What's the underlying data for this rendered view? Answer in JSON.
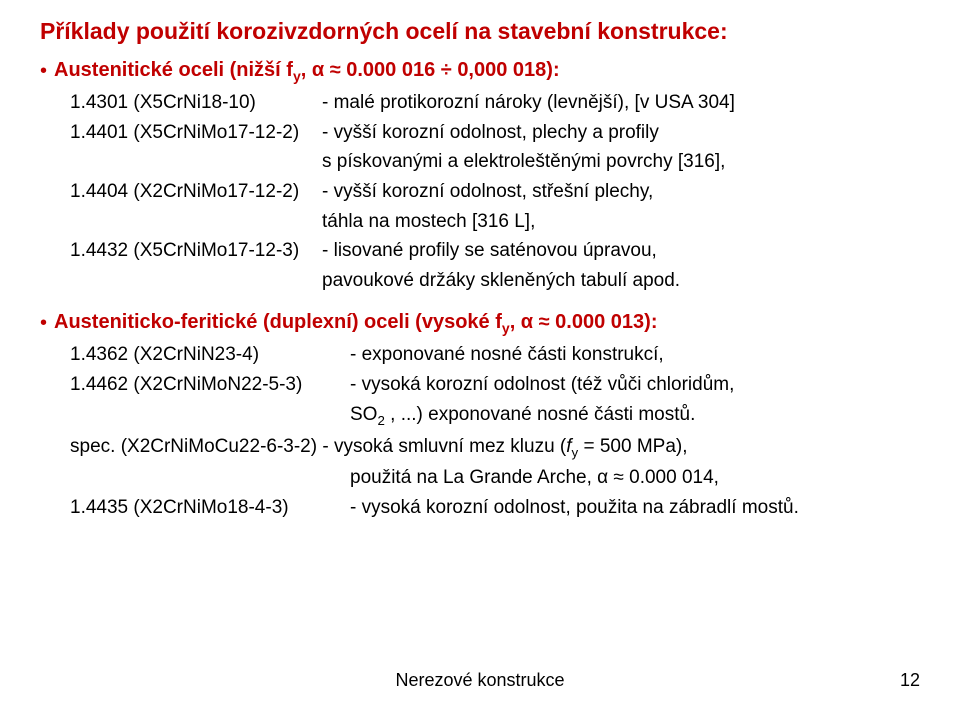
{
  "title": "Příklady použití korozivzdorných ocelí na stavební konstrukce:",
  "section1": {
    "head_pre": "Austenitické oceli",
    "head_post": " (nižší f",
    "head_sub": "y",
    "head_tail": ", α ≈ 0.000 016 ÷ 0,000 018):",
    "items": [
      {
        "code": "1.4301 (X5CrNi18-10)",
        "desc": "- malé protikorozní nároky (levnější),   [v USA 304]"
      },
      {
        "code": "1.4401 (X5CrNiMo17-12-2)",
        "desc": "- vyšší korozní odolnost, plechy a profily",
        "cont": "  s pískovanými a elektroleštěnými povrchy [316],"
      },
      {
        "code": "1.4404 (X2CrNiMo17-12-2)",
        "desc": "- vyšší korozní odolnost, střešní plechy,",
        "cont": "  táhla na mostech [316 L],"
      },
      {
        "code": "1.4432 (X5CrNiMo17-12-3)",
        "desc": "- lisované profily se saténovou úpravou,",
        "cont": "  pavoukové držáky skleněných tabulí apod."
      }
    ]
  },
  "section2": {
    "head_pre": "Austeniticko-feritické (duplexní) oceli",
    "head_post": " (vysoké f",
    "head_sub": "y",
    "head_tail": ", α ≈ 0.000 013):",
    "items": [
      {
        "code": "1.4362 (X2CrNiN23-4)",
        "desc": "- exponované nosné části konstrukcí,"
      },
      {
        "code": "1.4462 (X2CrNiMoN22-5-3)",
        "desc": "- vysoká korozní odolnost (též vůči chloridům,"
      }
    ],
    "so2_line_pre": "SO",
    "so2_sub": "2",
    "so2_line_post": " , ...) exponované nosné části mostů.",
    "spec_pre": "spec. (X2CrNiMoCu22-6-3-2) - vysoká smluvní mez kluzu (",
    "spec_fy": "f",
    "spec_fy_sub": "y",
    "spec_mid": " = 500 MPa),",
    "spec_cont": "použitá na La Grande Arche, α ≈ 0.000 014,",
    "last_code": "1.4435 (X2CrNiMo18-4-3)",
    "last_desc": "- vysoká korozní odolnost, použita na zábradlí mostů."
  },
  "footer": "Nerezové konstrukce",
  "pagenum": "12"
}
